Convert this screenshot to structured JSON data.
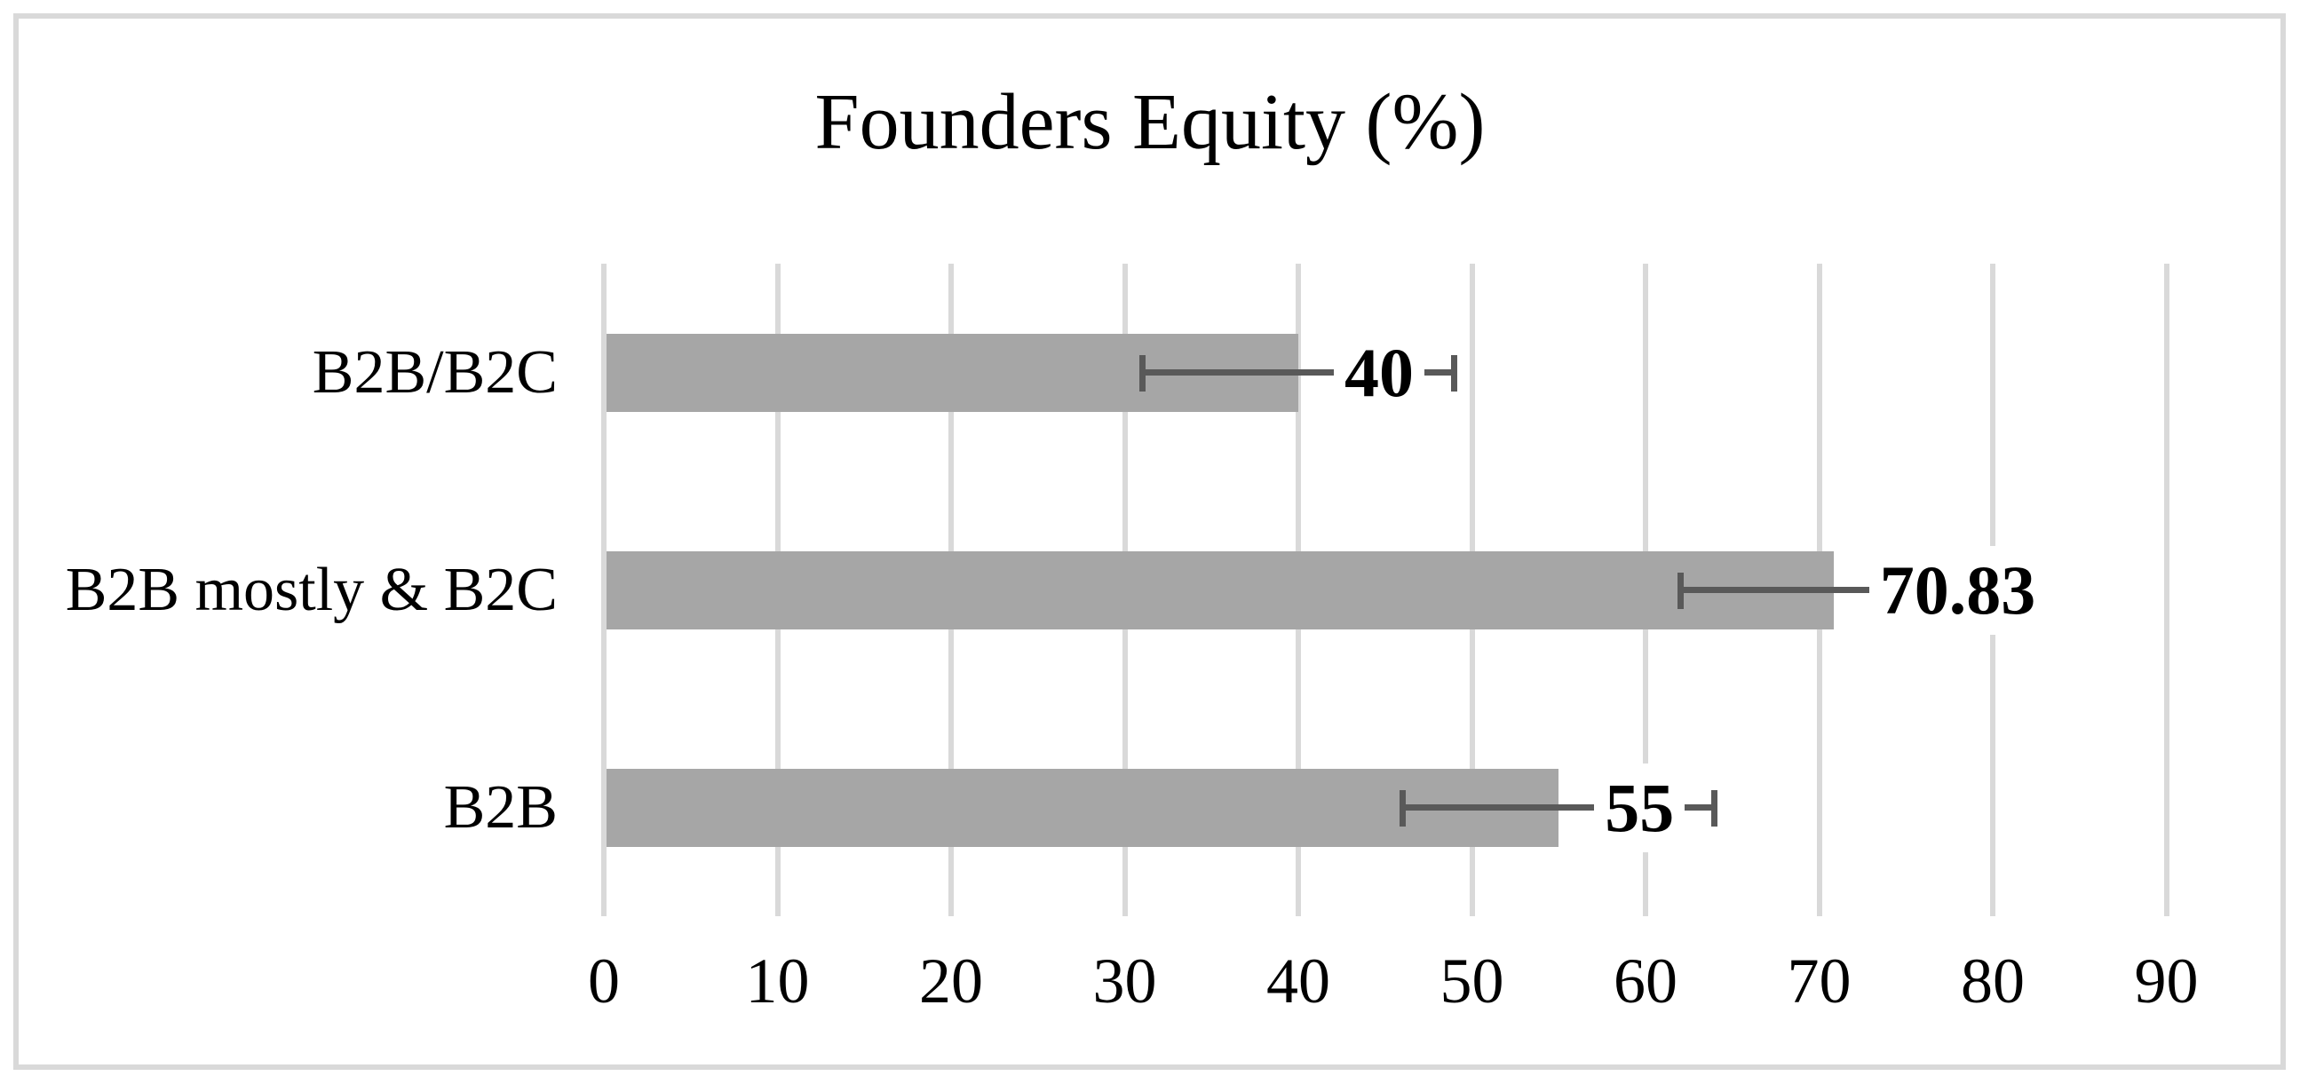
{
  "chart_data": {
    "type": "bar",
    "orientation": "horizontal",
    "title": "Founders Equity (%)",
    "categories": [
      "B2B/B2C",
      "B2B mostly & B2C",
      "B2B"
    ],
    "values": [
      40,
      70.83,
      55
    ],
    "value_labels": [
      "40",
      "70.83",
      "55"
    ],
    "error_low": [
      31,
      62,
      46
    ],
    "error_high": [
      49,
      79.7,
      64
    ],
    "x_ticks": [
      0,
      10,
      20,
      30,
      40,
      50,
      60,
      70,
      80,
      90
    ],
    "xlim": [
      0,
      94
    ],
    "grid": true,
    "legend": "none",
    "xlabel": "",
    "ylabel": "",
    "colors": {
      "bar": "#a6a6a6",
      "error_bar": "#595959",
      "gridline": "#d9d9d9",
      "frame_border": "#d9d9d9",
      "text": "#000000",
      "background": "#ffffff"
    }
  }
}
